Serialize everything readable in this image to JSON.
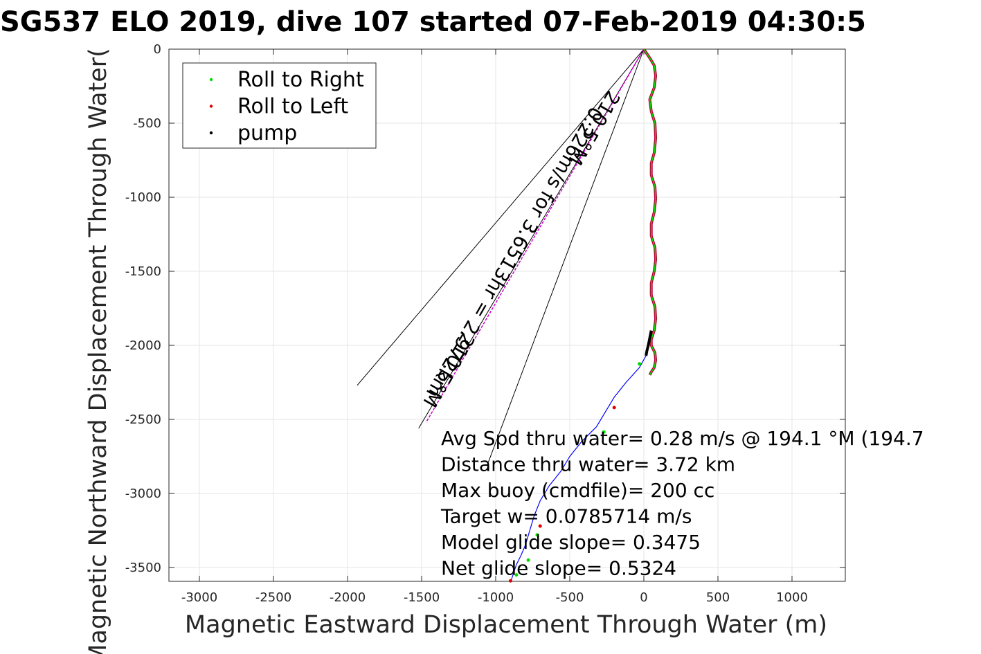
{
  "chart_data": {
    "type": "scatter",
    "title": "SG537 ELO 2019, dive 107 started 07-Feb-2019 04:30:5",
    "xlabel": "Magnetic Eastward Displacement Through Water (m)",
    "ylabel": "Magnetic Northward Displacement Through Water(",
    "xlim": [
      -3200,
      1350
    ],
    "ylim": [
      -3600,
      0
    ],
    "xticks": [
      -3000,
      -2500,
      -2000,
      -1500,
      -1000,
      -500,
      0,
      500,
      1000
    ],
    "yticks": [
      0,
      -500,
      -1000,
      -1500,
      -2000,
      -2500,
      -3000,
      -3500
    ],
    "grid": true,
    "legend": {
      "placement": "top-left",
      "entries": [
        {
          "label": "Roll to Right",
          "color": "#00dd00"
        },
        {
          "label": "Roll to Left",
          "color": "#dd0000"
        },
        {
          "label": "pump",
          "color": "#000000"
        }
      ]
    },
    "track_descent": {
      "x": [
        0,
        40,
        70,
        80,
        70,
        40,
        50,
        75,
        80,
        70,
        50,
        50,
        75,
        80,
        70,
        50,
        50,
        75,
        80,
        70,
        50,
        50,
        75,
        80,
        70,
        50,
        50,
        75,
        80,
        70,
        50,
        40
      ],
      "y": [
        0,
        -60,
        -110,
        -180,
        -260,
        -340,
        -420,
        -500,
        -600,
        -700,
        -770,
        -850,
        -930,
        -1010,
        -1100,
        -1180,
        -1260,
        -1340,
        -1420,
        -1500,
        -1580,
        -1660,
        -1740,
        -1820,
        -1900,
        -1960,
        -2000,
        -2050,
        -2100,
        -2150,
        -2180,
        -2200
      ]
    },
    "track_pump": {
      "x": [
        50,
        40,
        30,
        20,
        15
      ],
      "y": [
        -1900,
        -1950,
        -2000,
        -2040,
        -2070
      ]
    },
    "track_ascent": {
      "x": [
        15,
        -30,
        -120,
        -200,
        -260,
        -320,
        -420,
        -500,
        -560,
        -640,
        -700,
        -740,
        -770,
        -800,
        -830,
        -860,
        -880,
        -900
      ],
      "y": [
        -2070,
        -2150,
        -2250,
        -2350,
        -2450,
        -2550,
        -2650,
        -2750,
        -2850,
        -2950,
        -3050,
        -3150,
        -3250,
        -3350,
        -3420,
        -3480,
        -3540,
        -3600
      ]
    },
    "green_points": [
      [
        -30,
        -2125
      ],
      [
        -270,
        -2585
      ],
      [
        -720,
        -3280
      ],
      [
        -780,
        -3450
      ],
      [
        -860,
        -3550
      ]
    ],
    "red_points": [
      [
        -200,
        -2420
      ],
      [
        -700,
        -3220
      ],
      [
        -900,
        -3590
      ]
    ],
    "direction_lines": [
      {
        "x": [
          0,
          -1935
        ],
        "y": [
          0,
          -2270
        ]
      },
      {
        "x": [
          0,
          -1520
        ],
        "y": [
          0,
          -2560
        ]
      },
      {
        "x": [
          0,
          -1050
        ],
        "y": [
          0,
          -2790
        ]
      }
    ],
    "magenta_line": {
      "x": [
        0,
        -1470
      ],
      "y": [
        0,
        -2520
      ]
    },
    "rotated_labels": [
      "210.5°M",
      "0.226m/s for 3.6513hr = 2.972km",
      "210.5°M"
    ],
    "annotations": [
      "Avg Spd thru water=  0.28 m/s @ 194.1 °M (194.7",
      "Distance thru water=  3.72 km",
      "Max buoy (cmdfile)= 200 cc",
      "Target w= 0.0785714 m/s",
      "Model glide slope= 0.3475",
      "Net glide slope= 0.5324"
    ],
    "colors": {
      "roll_right": "#00dd00",
      "roll_left": "#dd0000",
      "pump": "#000000",
      "track": "#0000ff",
      "track_main": "#c0003a",
      "magenta": "#cc00cc",
      "grid": "#e5e5e5",
      "axis": "#262626"
    }
  }
}
